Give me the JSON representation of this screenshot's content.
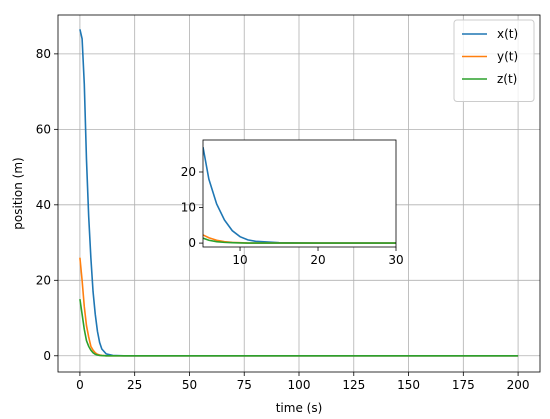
{
  "chart_data": [
    {
      "type": "line",
      "xlabel": "time (s)",
      "ylabel": "position (m)",
      "x": [
        0,
        1,
        2,
        3,
        4,
        5,
        6,
        7,
        8,
        9,
        10,
        12,
        15,
        20,
        50,
        100,
        150,
        200
      ],
      "series": [
        {
          "name": "x(t)",
          "color": "#1f77b4",
          "values": [
            86.5,
            84,
            72,
            52,
            37,
            26,
            17,
            11,
            6.5,
            3.5,
            1.8,
            0.5,
            0.1,
            0,
            0,
            0,
            0,
            0
          ]
        },
        {
          "name": "y(t)",
          "color": "#ff7f0e",
          "values": [
            26,
            20,
            13,
            8,
            5,
            2.5,
            1.5,
            0.8,
            0.4,
            0.2,
            0.1,
            0,
            0,
            0,
            0,
            0,
            0,
            0
          ]
        },
        {
          "name": "z(t)",
          "color": "#2ca02c",
          "values": [
            15,
            11,
            7,
            4,
            2.5,
            1.5,
            0.8,
            0.4,
            0.2,
            0.1,
            0.05,
            0,
            0,
            0,
            0,
            0,
            0,
            0
          ]
        }
      ],
      "xlim": [
        -10,
        210
      ],
      "ylim": [
        -4.3,
        90.3
      ],
      "xticks": [
        0,
        25,
        50,
        75,
        100,
        125,
        150,
        175,
        200
      ],
      "yticks": [
        0,
        20,
        40,
        60,
        80
      ],
      "grid": true,
      "legend": "upper right"
    },
    {
      "type": "line",
      "x": [
        5.25,
        6,
        7,
        8,
        9,
        10,
        11,
        12,
        15,
        20,
        30
      ],
      "series": [
        {
          "color": "#1f77b4",
          "values": [
            27,
            18,
            11,
            6.5,
            3.5,
            1.8,
            0.9,
            0.5,
            0.1,
            0,
            0
          ]
        },
        {
          "color": "#ff7f0e",
          "values": [
            2.3,
            1.5,
            0.8,
            0.4,
            0.2,
            0.1,
            0,
            0,
            0,
            0,
            0
          ]
        },
        {
          "color": "#2ca02c",
          "values": [
            1.4,
            0.8,
            0.4,
            0.2,
            0.1,
            0.05,
            0,
            0,
            0,
            0,
            0
          ]
        }
      ],
      "xlim": [
        5.25,
        30
      ],
      "ylim": [
        -1.1,
        29
      ],
      "xticks": [
        10,
        20,
        30
      ],
      "yticks": [
        0,
        10,
        20
      ],
      "grid": false
    }
  ]
}
